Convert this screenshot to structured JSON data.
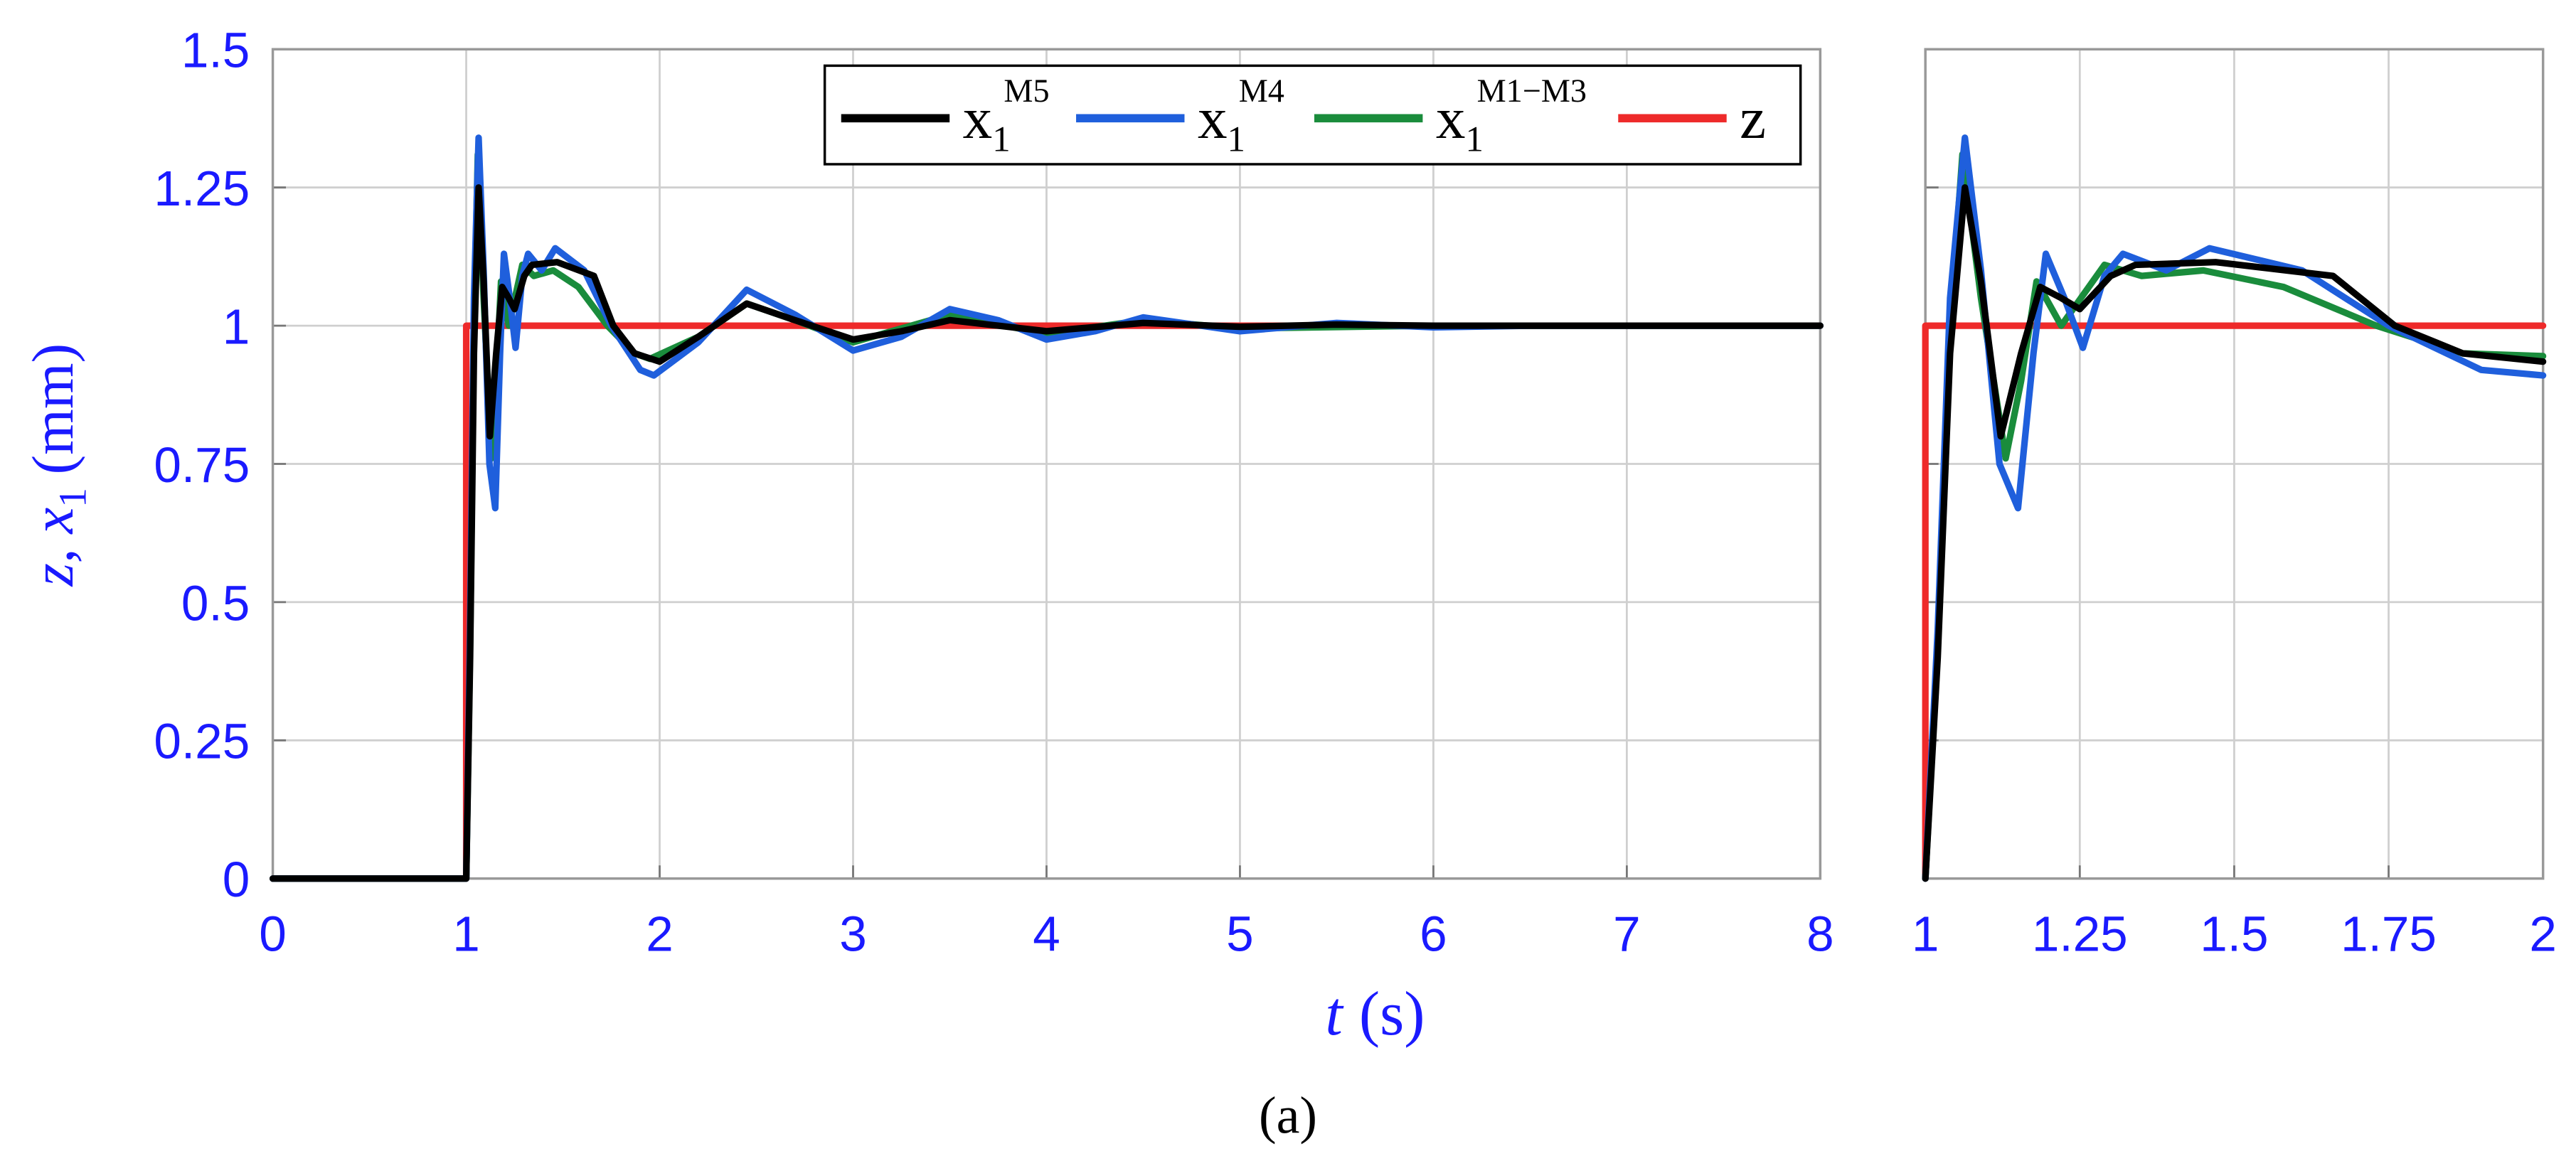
{
  "chart_data": [
    {
      "type": "line",
      "xlabel": "t",
      "xlabel_unit": "(s)",
      "ylabel": "z, x",
      "ylabel_sub": "1",
      "ylabel_unit": "(mm)",
      "xlim": [
        0,
        8
      ],
      "ylim": [
        0,
        1.5
      ],
      "xticks": [
        0,
        1,
        2,
        3,
        4,
        5,
        6,
        7,
        8
      ],
      "yticks": [
        0,
        0.25,
        0.5,
        0.75,
        1,
        1.25,
        1.5
      ],
      "grid": true,
      "legend": "upper right",
      "series": [
        {
          "name": "x",
          "name_sub": "1",
          "name_sup": "M5",
          "color": "#000000",
          "x": [
            0,
            1,
            1.02,
            1.04,
            1.064,
            1.09,
            1.122,
            1.155,
            1.186,
            1.22,
            1.25,
            1.3,
            1.34,
            1.47,
            1.66,
            1.76,
            1.87,
            2.0,
            2.2,
            2.45,
            2.7,
            3.0,
            3.25,
            3.5,
            3.75,
            4.0,
            4.5,
            5.0,
            5.5,
            6.0,
            7.0,
            8.0
          ],
          "values": [
            0,
            0,
            0.4,
            0.95,
            1.25,
            1.08,
            0.8,
            0.95,
            1.07,
            1.05,
            1.03,
            1.09,
            1.11,
            1.115,
            1.09,
            1.0,
            0.95,
            0.935,
            0.98,
            1.04,
            1.01,
            0.975,
            0.99,
            1.01,
            1.0,
            0.99,
            1.005,
            0.998,
            1.002,
            1.0,
            1.0,
            1.0
          ]
        },
        {
          "name": "x",
          "name_sub": "1",
          "name_sup": "M4",
          "color": "#1f5fdc",
          "x": [
            0,
            1,
            1.02,
            1.04,
            1.064,
            1.09,
            1.12,
            1.15,
            1.175,
            1.195,
            1.225,
            1.255,
            1.29,
            1.32,
            1.39,
            1.46,
            1.61,
            1.75,
            1.9,
            1.97,
            2.2,
            2.45,
            2.7,
            3.0,
            3.25,
            3.5,
            3.75,
            4.0,
            4.25,
            4.5,
            5.0,
            5.5,
            6.0,
            6.5,
            7.0,
            8.0
          ],
          "values": [
            0,
            0,
            0.45,
            1.05,
            1.34,
            1.1,
            0.75,
            0.67,
            0.95,
            1.13,
            1.05,
            0.96,
            1.09,
            1.13,
            1.1,
            1.14,
            1.1,
            1.0,
            0.92,
            0.91,
            0.97,
            1.065,
            1.02,
            0.955,
            0.98,
            1.03,
            1.01,
            0.975,
            0.99,
            1.015,
            0.99,
            1.005,
            0.997,
            1.0,
            1.0,
            1.0
          ]
        },
        {
          "name": "x",
          "name_sub": "1",
          "name_sup": "M1−M3",
          "color": "#1a8c3c",
          "x": [
            0,
            1,
            1.02,
            1.04,
            1.06,
            1.09,
            1.13,
            1.155,
            1.18,
            1.22,
            1.29,
            1.35,
            1.45,
            1.58,
            1.73,
            1.87,
            1.95,
            2.2,
            2.45,
            2.7,
            3.0,
            3.5,
            4.0,
            4.5,
            5.0,
            6.0,
            8.0
          ],
          "values": [
            0,
            0,
            0.42,
            1.0,
            1.31,
            1.05,
            0.76,
            0.9,
            1.08,
            1.0,
            1.11,
            1.09,
            1.1,
            1.07,
            1.0,
            0.95,
            0.94,
            0.98,
            1.04,
            1.01,
            0.97,
            1.02,
            0.985,
            1.01,
            0.995,
            1.0,
            1.0
          ]
        },
        {
          "name": "z",
          "color": "#ee2a2a",
          "x": [
            0,
            1,
            1,
            8
          ],
          "values": [
            0,
            0,
            1,
            1
          ]
        }
      ]
    },
    {
      "type": "line",
      "xlim": [
        1,
        2
      ],
      "ylim": [
        0,
        1.5
      ],
      "xticks": [
        1,
        1.25,
        1.5,
        1.75,
        2
      ],
      "yticks": [
        0,
        0.25,
        0.5,
        0.75,
        1,
        1.25,
        1.5
      ],
      "grid": true,
      "ytick_labels": false,
      "series": [
        {
          "color": "#000000",
          "x": [
            1,
            1.02,
            1.04,
            1.064,
            1.09,
            1.122,
            1.155,
            1.186,
            1.22,
            1.25,
            1.3,
            1.34,
            1.47,
            1.66,
            1.76,
            1.87,
            2.0
          ],
          "values": [
            0,
            0.4,
            0.95,
            1.25,
            1.08,
            0.8,
            0.95,
            1.07,
            1.05,
            1.03,
            1.09,
            1.11,
            1.115,
            1.09,
            1.0,
            0.95,
            0.935
          ]
        },
        {
          "color": "#1f5fdc",
          "x": [
            1,
            1.02,
            1.04,
            1.064,
            1.09,
            1.12,
            1.15,
            1.175,
            1.195,
            1.225,
            1.255,
            1.29,
            1.32,
            1.39,
            1.46,
            1.61,
            1.75,
            1.9,
            2.0
          ],
          "values": [
            0,
            0.45,
            1.05,
            1.34,
            1.1,
            0.75,
            0.67,
            0.95,
            1.13,
            1.05,
            0.96,
            1.09,
            1.13,
            1.1,
            1.14,
            1.1,
            1.0,
            0.92,
            0.91
          ]
        },
        {
          "color": "#1a8c3c",
          "x": [
            1,
            1.02,
            1.04,
            1.06,
            1.09,
            1.13,
            1.155,
            1.18,
            1.22,
            1.29,
            1.35,
            1.45,
            1.58,
            1.73,
            1.87,
            2.0
          ],
          "values": [
            0,
            0.42,
            1.0,
            1.31,
            1.05,
            0.76,
            0.9,
            1.08,
            1.0,
            1.11,
            1.09,
            1.1,
            1.07,
            1.0,
            0.95,
            0.945
          ]
        },
        {
          "color": "#ee2a2a",
          "x": [
            1,
            1,
            2
          ],
          "values": [
            0,
            1,
            1
          ]
        }
      ]
    }
  ],
  "caption": "(a)"
}
